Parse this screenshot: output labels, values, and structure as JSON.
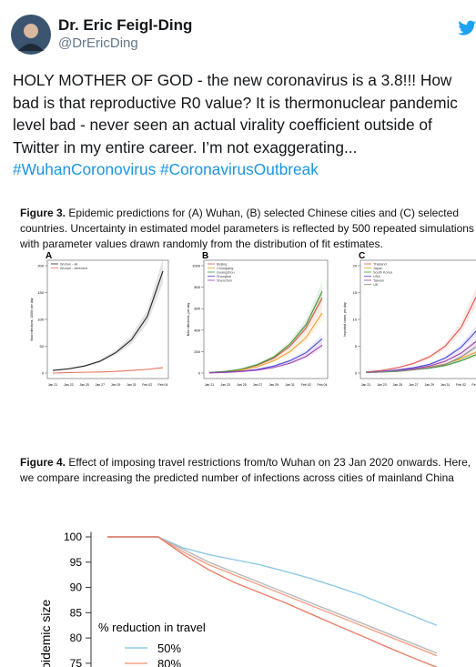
{
  "tweet": {
    "name": "Dr. Eric Feigl-Ding",
    "handle": "@DrEricDing",
    "text": "HOLY MOTHER OF GOD - the new coronavirus is a 3.8!!! How bad is that reproductive R0 value? It is thermonuclear pandemic level bad - never seen an actual virality coefficient outside of Twitter in my entire career. I’m not exaggerating...",
    "hashtags": [
      "#WuhanCoronovirus",
      "#CoronavirusOutbreak"
    ]
  },
  "figure3": {
    "label": "Figure 3.",
    "caption": "Epidemic predictions for (A) Wuhan, (B) selected Chinese cities and (C) selected countries. Uncertainty in estimated model parameters is reflected by 500 repeated simulations with parameter values drawn randomly from the distribution of fit estimates.",
    "x": [
      "Jan 21",
      "Jan 23",
      "Jan 25",
      "Jan 27",
      "Jan 29",
      "Jan 31",
      "Feb 02",
      "Feb 04"
    ],
    "panels": [
      {
        "letter": "A",
        "ylabel": "New infections, 1000s per day",
        "ylim": [
          0,
          200
        ],
        "yticks": [
          0,
          50,
          100,
          150,
          200
        ],
        "series": [
          {
            "name": "Wuhan - all",
            "color": "#222222",
            "values": [
              5,
              8,
              13,
              22,
              38,
              62,
              105,
              190
            ]
          },
          {
            "name": "Wuhan - detected",
            "color": "#e8735f",
            "values": [
              0,
              1,
              1.5,
              2,
              3,
              5,
              7,
              10
            ]
          }
        ]
      },
      {
        "letter": "B",
        "ylabel": "New infections, per day",
        "ylim": [
          0,
          1000
        ],
        "yticks": [
          0,
          200,
          400,
          600,
          800,
          1000
        ],
        "series": [
          {
            "name": "Beijing",
            "color": "#e0524a",
            "values": [
              5,
              15,
              35,
              75,
              140,
              250,
              420,
              700
            ]
          },
          {
            "name": "Chongqing",
            "color": "#f0a030",
            "values": [
              4,
              12,
              28,
              60,
              115,
              200,
              330,
              560
            ]
          },
          {
            "name": "Guangzhou",
            "color": "#3c9a3c",
            "values": [
              5,
              15,
              38,
              80,
              150,
              270,
              450,
              760
            ]
          },
          {
            "name": "Shanghai",
            "color": "#4a4ad8",
            "values": [
              3,
              8,
              18,
              35,
              65,
              115,
              190,
              320
            ]
          },
          {
            "name": "Shenzhen",
            "color": "#a040b0",
            "values": [
              2,
              6,
              14,
              28,
              52,
              92,
              155,
              260
            ]
          }
        ]
      },
      {
        "letter": "C",
        "ylabel": "Imported cases, per day",
        "ylim": [
          0,
          20
        ],
        "yticks": [
          0,
          5,
          10,
          15,
          20
        ],
        "series": [
          {
            "name": "Thailand",
            "color": "#e0524a",
            "values": [
              0.2,
              0.5,
              1,
              1.8,
              3,
              5,
              8.5,
              14.5
            ]
          },
          {
            "name": "Japan",
            "color": "#f0a030",
            "values": [
              0.1,
              0.2,
              0.4,
              0.7,
              1.1,
              1.7,
              2.7,
              4
            ]
          },
          {
            "name": "South Korea",
            "color": "#3c9a3c",
            "values": [
              0.1,
              0.2,
              0.3,
              0.6,
              0.9,
              1.4,
              2.3,
              3.5
            ]
          },
          {
            "name": "USA",
            "color": "#4a4ad8",
            "values": [
              0.1,
              0.3,
              0.6,
              1,
              1.6,
              2.8,
              4.8,
              8
            ]
          },
          {
            "name": "Taiwan",
            "color": "#a040b0",
            "values": [
              0.1,
              0.2,
              0.5,
              0.8,
              1.3,
              2.2,
              3.7,
              6
            ]
          },
          {
            "name": "UK",
            "color": "#888888",
            "values": [
              0.1,
              0.2,
              0.4,
              0.6,
              1,
              1.6,
              3,
              5
            ]
          }
        ]
      }
    ]
  },
  "figure4": {
    "label": "Figure 4.",
    "caption": "Effect of imposing travel restrictions from/to Wuhan on 23 Jan 2020 onwards. Here, we compare increasing the predicted number of infections across cities of mainland China",
    "ylabel": "epidemic size",
    "ylim": [
      74,
      101
    ],
    "yticks": [
      100,
      95,
      90,
      85,
      80,
      75
    ],
    "legend_title": "% reduction in travel",
    "series": [
      {
        "name": "50%",
        "color": "#8ecae6",
        "values": [
          100,
          100,
          100,
          97.8,
          96.5,
          95.5,
          94.5,
          93.2,
          91.8,
          90.2,
          88.5,
          86.5,
          84.5,
          82.5
        ]
      },
      {
        "name": "80%",
        "color": "#f4a088",
        "values": [
          100,
          100,
          100,
          97,
          94.5,
          92.5,
          90.5,
          88.5,
          86.5,
          84.5,
          82.5,
          80.5,
          78.5,
          76.5
        ]
      },
      {
        "color": "#b8b8b8",
        "values": [
          100,
          100,
          100,
          97.5,
          95,
          93,
          91,
          89,
          87,
          85,
          83,
          81,
          79,
          77
        ]
      },
      {
        "color": "#e8806a",
        "values": [
          100,
          100,
          100,
          96.5,
          93.5,
          91,
          89,
          87,
          84.8,
          82.6,
          80.5,
          78.3,
          76.2,
          74.2
        ]
      }
    ]
  }
}
